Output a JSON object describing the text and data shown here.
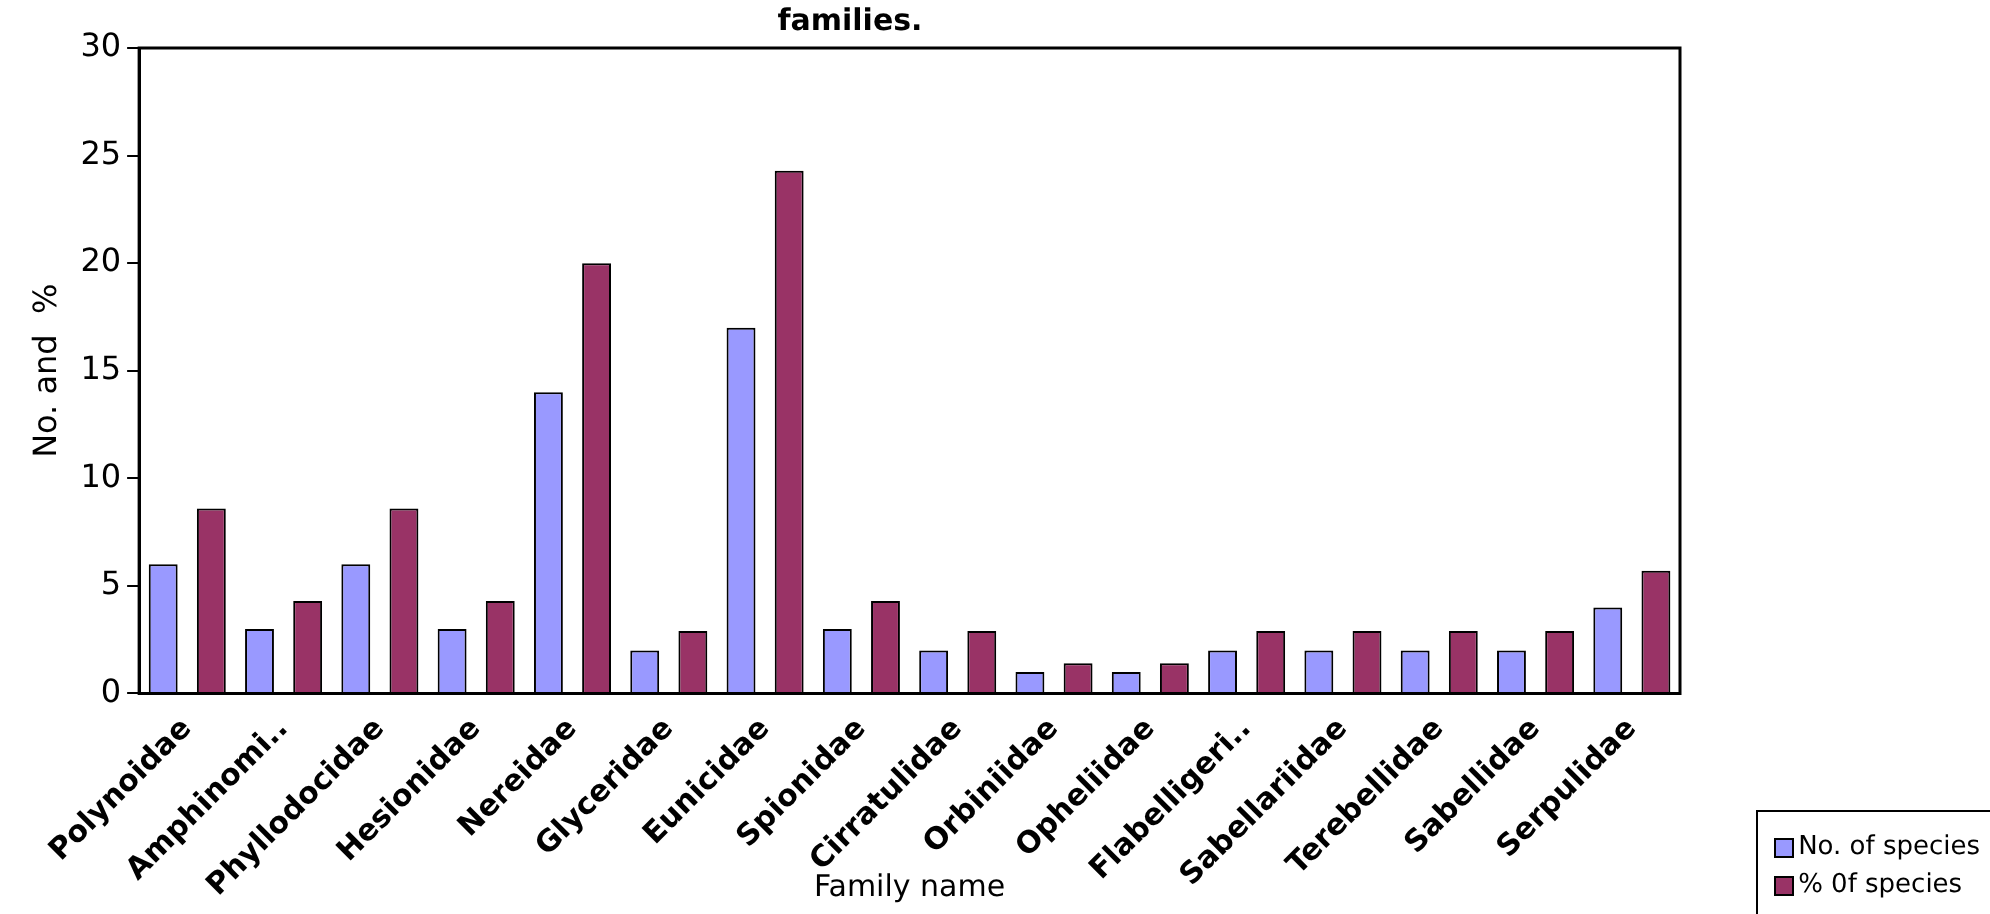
{
  "chart_data": {
    "type": "bar",
    "title": "families.",
    "xlabel": "Family name",
    "ylabel": "No. and  %",
    "categories": [
      "Polynoidae",
      "Amphinomi..",
      "Phyllodocidae",
      "Hesionidae",
      "Nereidae",
      "Glyceridae",
      "Eunicidae",
      "Spionidae",
      "Cirratulidae",
      "Orbiniidae",
      "Opheliidae",
      "Flabelligeri..",
      "Sabellariidae",
      "Terebellidae",
      "Sabellidae",
      "Serpulidae"
    ],
    "series": [
      {
        "name": "No. of species",
        "color": "#9999ff",
        "values": [
          6,
          3,
          6,
          3,
          14,
          2,
          17,
          3,
          2,
          1,
          1,
          2,
          2,
          2,
          2,
          4
        ]
      },
      {
        "name": "% 0f species",
        "color": "#993366",
        "values": [
          8.6,
          4.3,
          8.6,
          4.3,
          20,
          2.9,
          24.3,
          4.3,
          2.9,
          1.4,
          1.4,
          2.9,
          2.9,
          2.9,
          2.9,
          5.7
        ]
      }
    ],
    "ylim": [
      0,
      30
    ],
    "yticks": [
      0,
      5,
      10,
      15,
      20,
      25,
      30
    ],
    "grid": false,
    "legend": "bottom right"
  }
}
